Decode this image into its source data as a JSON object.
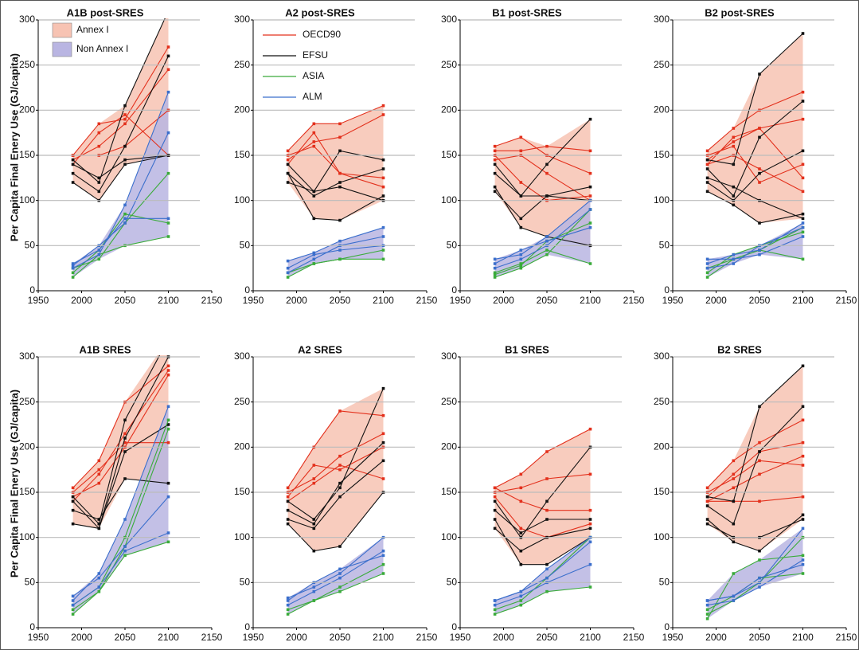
{
  "chart_data": {
    "type": "line",
    "ylabel": "Per Capita Final Enery Use (GJ/capita)",
    "xlim": [
      1950,
      2150
    ],
    "xticks": [
      1950,
      2000,
      2050,
      2100,
      2150
    ],
    "ylim": [
      0,
      300
    ],
    "yticks": [
      0,
      50,
      100,
      150,
      200,
      250,
      300
    ],
    "grid": true,
    "x": [
      1990,
      2020,
      2050,
      2100
    ],
    "regions": [
      {
        "name": "Annex I",
        "color": "#f7c3b3",
        "series": [
          {
            "name": "OECD90",
            "color": "#e3301c"
          },
          {
            "name": "EFSU",
            "color": "#111111"
          }
        ]
      },
      {
        "name": "Non Annex I",
        "color": "#b9b5e2",
        "series": [
          {
            "name": "ASIA",
            "color": "#3aab3a"
          },
          {
            "name": "ALM",
            "color": "#3b6fcc"
          }
        ]
      }
    ],
    "panels": [
      {
        "title": "A1B post-SRES",
        "series": {
          "OECD90": [
            [
              150,
              185,
              190,
              270
            ],
            [
              145,
              160,
              185,
              245
            ],
            [
              150,
              150,
              160,
              200
            ],
            [
              140,
              175,
              195,
              150
            ]
          ],
          "EFSU": [
            [
              145,
              120,
              205,
              310
            ],
            [
              130,
              110,
              160,
              260
            ],
            [
              140,
              125,
              145,
              150
            ],
            [
              120,
              100,
              140,
              150
            ]
          ],
          "ASIA": [
            [
              15,
              40,
              50,
              60
            ],
            [
              25,
              35,
              75,
              130
            ],
            [
              20,
              45,
              85,
              75
            ]
          ],
          "ALM": [
            [
              30,
              45,
              80,
              80
            ],
            [
              25,
              40,
              95,
              220
            ],
            [
              28,
              50,
              75,
              175
            ]
          ]
        }
      },
      {
        "title": "A2 post-SRES",
        "series": {
          "OECD90": [
            [
              155,
              185,
              185,
              205
            ],
            [
              145,
              165,
              170,
              195
            ],
            [
              150,
              160,
              130,
              115
            ],
            [
              140,
              175,
              130,
              125
            ]
          ],
          "EFSU": [
            [
              140,
              110,
              155,
              145
            ],
            [
              130,
              105,
              120,
              135
            ],
            [
              120,
              110,
              115,
              100
            ],
            [
              130,
              80,
              78,
              105
            ]
          ],
          "ASIA": [
            [
              20,
              30,
              35,
              35
            ],
            [
              15,
              30,
              35,
              45
            ]
          ],
          "ALM": [
            [
              33,
              42,
              55,
              70
            ],
            [
              25,
              40,
              45,
              50
            ],
            [
              20,
              35,
              50,
              60
            ]
          ]
        }
      },
      {
        "title": "B1 post-SRES",
        "series": {
          "OECD90": [
            [
              155,
              155,
              160,
              155
            ],
            [
              160,
              170,
              150,
              130
            ],
            [
              145,
              150,
              130,
              100
            ],
            [
              150,
              120,
              100,
              105
            ]
          ],
          "EFSU": [
            [
              140,
              105,
              140,
              190
            ],
            [
              130,
              105,
              105,
              100
            ],
            [
              110,
              80,
              105,
              115
            ],
            [
              115,
              70,
              60,
              50
            ]
          ],
          "ASIA": [
            [
              15,
              25,
              40,
              90
            ],
            [
              20,
              30,
              45,
              30
            ],
            [
              18,
              28,
              55,
              75
            ]
          ],
          "ALM": [
            [
              35,
              40,
              60,
              100
            ],
            [
              25,
              35,
              50,
              90
            ],
            [
              30,
              45,
              55,
              70
            ]
          ]
        }
      },
      {
        "title": "B2 post-SRES",
        "series": {
          "OECD90": [
            [
              155,
              180,
              200,
              220
            ],
            [
              145,
              165,
              180,
              190
            ],
            [
              140,
              150,
              135,
              110
            ],
            [
              150,
              160,
              120,
              140
            ],
            [
              140,
              170,
              180,
              125
            ]
          ],
          "EFSU": [
            [
              145,
              140,
              240,
              285
            ],
            [
              135,
              105,
              170,
              210
            ],
            [
              120,
              100,
              130,
              155
            ],
            [
              110,
              95,
              75,
              85
            ],
            [
              125,
              115,
              100,
              80
            ]
          ],
          "ASIA": [
            [
              15,
              35,
              45,
              70
            ],
            [
              20,
              40,
              50,
              65
            ],
            [
              25,
              35,
              45,
              35
            ]
          ],
          "ALM": [
            [
              35,
              35,
              40,
              60
            ],
            [
              25,
              30,
              50,
              70
            ],
            [
              30,
              40,
              45,
              75
            ]
          ]
        }
      },
      {
        "title": "A1B SRES",
        "series": {
          "OECD90": [
            [
              155,
              185,
              250,
              290
            ],
            [
              150,
              175,
              205,
              205
            ],
            [
              145,
              160,
              200,
              280
            ],
            [
              140,
              170,
              215,
              285
            ]
          ],
          "EFSU": [
            [
              145,
              115,
              230,
              320
            ],
            [
              140,
              110,
              210,
              300
            ],
            [
              130,
              120,
              165,
              160
            ],
            [
              115,
              110,
              195,
              225
            ]
          ],
          "ASIA": [
            [
              15,
              40,
              80,
              95
            ],
            [
              20,
              40,
              90,
              220
            ],
            [
              25,
              45,
              100,
              230
            ]
          ],
          "ALM": [
            [
              30,
              60,
              120,
              245
            ],
            [
              35,
              55,
              90,
              145
            ],
            [
              25,
              45,
              85,
              105
            ]
          ]
        }
      },
      {
        "title": "A2 SRES",
        "series": {
          "OECD90": [
            [
              155,
              200,
              240,
              235
            ],
            [
              150,
              165,
              190,
              215
            ],
            [
              145,
              180,
              175,
              200
            ],
            [
              140,
              160,
              180,
              165
            ]
          ],
          "EFSU": [
            [
              140,
              120,
              155,
              265
            ],
            [
              130,
              115,
              160,
              205
            ],
            [
              115,
              85,
              90,
              150
            ],
            [
              120,
              110,
              145,
              185
            ]
          ],
          "ASIA": [
            [
              15,
              30,
              40,
              60
            ],
            [
              20,
              30,
              45,
              70
            ]
          ],
          "ALM": [
            [
              33,
              45,
              60,
              100
            ],
            [
              25,
              40,
              55,
              85
            ],
            [
              30,
              50,
              65,
              80
            ]
          ]
        }
      },
      {
        "title": "B1 SRES",
        "series": {
          "OECD90": [
            [
              155,
              170,
              195,
              220
            ],
            [
              150,
              155,
              165,
              170
            ],
            [
              155,
              140,
              130,
              130
            ],
            [
              145,
              110,
              100,
              115
            ]
          ],
          "EFSU": [
            [
              140,
              100,
              140,
              200
            ],
            [
              130,
              105,
              120,
              120
            ],
            [
              110,
              85,
              100,
              110
            ],
            [
              120,
              70,
              70,
              100
            ]
          ],
          "ASIA": [
            [
              15,
              25,
              40,
              45
            ],
            [
              20,
              30,
              55,
              100
            ]
          ],
          "ALM": [
            [
              30,
              40,
              55,
              95
            ],
            [
              25,
              35,
              50,
              70
            ],
            [
              30,
              40,
              65,
              100
            ]
          ]
        }
      },
      {
        "title": "B2 SRES",
        "series": {
          "OECD90": [
            [
              155,
              185,
              205,
              230
            ],
            [
              145,
              170,
              195,
              205
            ],
            [
              140,
              155,
              170,
              190
            ],
            [
              150,
              165,
              185,
              180
            ],
            [
              140,
              140,
              140,
              145
            ]
          ],
          "EFSU": [
            [
              145,
              140,
              245,
              290
            ],
            [
              135,
              115,
              195,
              245
            ],
            [
              120,
              95,
              85,
              125
            ],
            [
              115,
              100,
              100,
              120
            ]
          ],
          "ASIA": [
            [
              10,
              60,
              75,
              80
            ],
            [
              15,
              30,
              50,
              100
            ],
            [
              20,
              35,
              55,
              60
            ]
          ],
          "ALM": [
            [
              30,
              35,
              50,
              110
            ],
            [
              25,
              30,
              45,
              75
            ],
            [
              30,
              35,
              55,
              70
            ]
          ]
        }
      }
    ]
  }
}
